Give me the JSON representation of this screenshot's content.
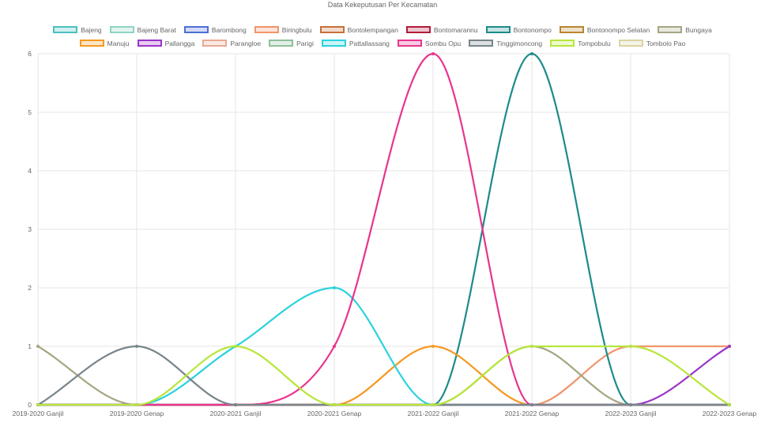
{
  "chart_data": {
    "type": "line",
    "title": "Data Kekeputusan Per Kecamatan",
    "categories": [
      "2019-2020 Ganjil",
      "2019-2020 Genap",
      "2020-2021 Ganjil",
      "2020-2021 Genap",
      "2021-2022 Ganjil",
      "2021-2022 Genap",
      "2022-2023 Ganjil",
      "2022-2023 Genap"
    ],
    "ylim": [
      0,
      6
    ],
    "yticks": [
      "0",
      "1",
      "2",
      "3",
      "4",
      "5",
      "6"
    ],
    "grid": true,
    "legend_position": "top",
    "series": [
      {
        "name": "Bajeng",
        "color": "#4bc0c0",
        "values": [
          0,
          0,
          0,
          0,
          0,
          0,
          0,
          0
        ]
      },
      {
        "name": "Bajeng Barat",
        "color": "#8fd3c3",
        "values": [
          0,
          0,
          0,
          0,
          0,
          0,
          0,
          0
        ]
      },
      {
        "name": "Barombong",
        "color": "#4f6fd6",
        "values": [
          0,
          0,
          0,
          0,
          0,
          0,
          0,
          0
        ]
      },
      {
        "name": "Biringbulu",
        "color": "#f0956a",
        "values": [
          0,
          0,
          0,
          0,
          0,
          0,
          1,
          1
        ]
      },
      {
        "name": "Bontolempangan",
        "color": "#c7703a",
        "values": [
          0,
          0,
          0,
          0,
          0,
          0,
          0,
          0
        ]
      },
      {
        "name": "Bontomarannu",
        "color": "#b01d3a",
        "values": [
          0,
          0,
          0,
          0,
          0,
          0,
          0,
          0
        ]
      },
      {
        "name": "Bontonompo",
        "color": "#1e8a8a",
        "values": [
          0,
          0,
          0,
          0,
          0,
          6,
          0,
          0
        ]
      },
      {
        "name": "Bontonompo Selatan",
        "color": "#b8862e",
        "values": [
          0,
          0,
          0,
          0,
          0,
          0,
          0,
          0
        ]
      },
      {
        "name": "Bungaya",
        "color": "#a6a683",
        "values": [
          1,
          0,
          0,
          0,
          0,
          1,
          0,
          0
        ]
      },
      {
        "name": "Manuju",
        "color": "#f59a23",
        "values": [
          0,
          0,
          0,
          0,
          1,
          0,
          0,
          0
        ]
      },
      {
        "name": "Pallangga",
        "color": "#9b35c8",
        "values": [
          0,
          0,
          0,
          0,
          0,
          0,
          0,
          1
        ]
      },
      {
        "name": "Parangloe",
        "color": "#e8a993",
        "values": [
          0,
          0,
          0,
          0,
          0,
          0,
          0,
          0
        ]
      },
      {
        "name": "Parigi",
        "color": "#8fbf9a",
        "values": [
          0,
          0,
          0,
          0,
          0,
          0,
          0,
          0
        ]
      },
      {
        "name": "Pattallassang",
        "color": "#2ad2de",
        "values": [
          0,
          0,
          1,
          2,
          0,
          0,
          0,
          0
        ]
      },
      {
        "name": "Sombu Opu",
        "color": "#e8358e",
        "values": [
          0,
          0,
          0,
          1,
          6,
          0,
          0,
          0
        ]
      },
      {
        "name": "Tinggimoncong",
        "color": "#78858a",
        "values": [
          0,
          1,
          0,
          0,
          0,
          0,
          0,
          0
        ]
      },
      {
        "name": "Tompobulu",
        "color": "#b7e63c",
        "values": [
          0,
          0,
          1,
          0,
          0,
          1,
          1,
          0
        ]
      },
      {
        "name": "Tombolo Pao",
        "color": "#d9d4a3",
        "values": [
          0,
          0,
          0,
          0,
          0,
          0,
          0,
          0
        ]
      }
    ]
  }
}
